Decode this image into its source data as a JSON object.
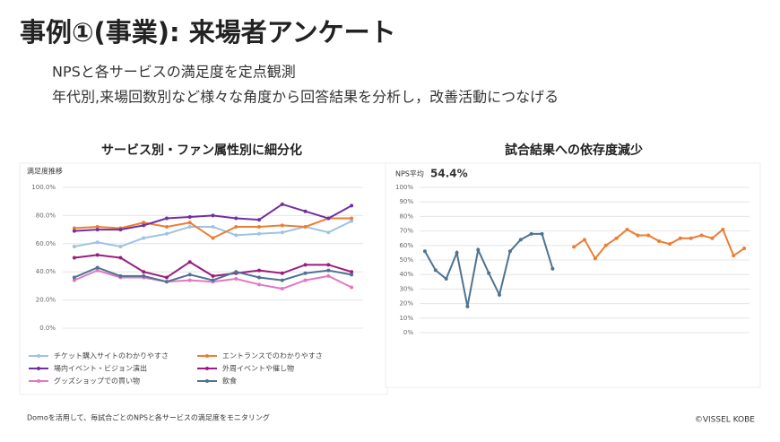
{
  "slide": {
    "title": "事例①(事業): 来場者アンケート",
    "lines": [
      "NPSと各サービスの満足度を定点観測",
      "年代別,来場回数別など様々な角度から回答結果を分析し，改善活動につなげる"
    ],
    "footer": "Domoを活用して、毎試合ごとのNPSと各サービスの満足度をモニタリング",
    "copyright": "©VISSEL  KOBE"
  },
  "chart_data": [
    {
      "type": "line",
      "heading": "サービス別・ファン属性別に細分化",
      "title": "満足度推移",
      "categories": [
        null,
        null,
        null,
        null,
        null,
        null,
        null,
        null,
        null,
        null,
        null,
        null,
        null
      ],
      "series": [
        {
          "name": "チケット購入サイトのわかりやすさ",
          "color": "#9dc3e6",
          "values": [
            58,
            61,
            58,
            64,
            67,
            72,
            72,
            66,
            67,
            68,
            72,
            68,
            76
          ]
        },
        {
          "name": "エントランスでのわかりやすさ",
          "color": "#ed7d31",
          "values": [
            71,
            72,
            71,
            75,
            72,
            75,
            64,
            72,
            72,
            73,
            72,
            78,
            78
          ]
        },
        {
          "name": "場内イベント・ビジョン演出",
          "color": "#7030a0",
          "values": [
            69,
            70,
            70,
            73,
            78,
            79,
            80,
            78,
            77,
            88,
            83,
            78,
            87
          ]
        },
        {
          "name": "外周イベントや催し物",
          "color": "#9b1c7e",
          "values": [
            50,
            52,
            50,
            40,
            36,
            47,
            37,
            39,
            41,
            39,
            45,
            45,
            40
          ]
        },
        {
          "name": "グッズショップでの買い物",
          "color": "#e377c2",
          "values": [
            34,
            41,
            36,
            36,
            33,
            34,
            33,
            35,
            31,
            28,
            34,
            37,
            29
          ]
        },
        {
          "name": "飲食",
          "color": "#4f7390",
          "values": [
            36,
            43,
            37,
            37,
            33,
            38,
            34,
            40,
            36,
            34,
            39,
            41,
            38
          ]
        }
      ],
      "ylim": [
        0,
        100
      ],
      "yticks": [
        {
          "value": 0,
          "label": "0.0%"
        },
        {
          "value": 20,
          "label": "20.0%"
        },
        {
          "value": 40,
          "label": "40.0%"
        },
        {
          "value": 60,
          "label": "60.0%"
        },
        {
          "value": 80,
          "label": "80.0%"
        },
        {
          "value": 100,
          "label": "100.0%"
        }
      ],
      "grid": true,
      "legend": "bottom"
    },
    {
      "type": "line",
      "heading": "試合結果への依存度減少",
      "title": "NPS平均",
      "annotation": "54.4%",
      "categories": [
        null,
        null,
        null,
        null,
        null,
        null,
        null,
        null,
        null,
        null,
        null,
        null,
        null,
        null,
        null,
        null,
        null,
        null,
        null,
        null,
        null,
        null,
        null,
        null,
        null,
        null,
        null,
        null,
        null,
        null,
        null
      ],
      "series": [
        {
          "color": "#4f7390",
          "values": [
            56,
            43,
            37,
            55,
            18,
            57,
            41,
            26,
            56,
            64,
            68,
            68,
            44,
            null,
            null,
            null,
            null,
            null,
            null,
            null,
            null,
            null,
            null,
            null,
            null,
            null,
            null,
            null,
            null,
            null,
            null
          ]
        },
        {
          "color": "#ed7d31",
          "values": [
            null,
            null,
            null,
            null,
            null,
            null,
            null,
            null,
            null,
            null,
            null,
            null,
            null,
            null,
            59,
            64,
            51,
            60,
            65,
            71,
            67,
            67,
            63,
            61,
            65,
            65,
            67,
            65,
            71,
            53,
            58
          ]
        }
      ],
      "ylim": [
        0,
        100
      ],
      "yticks": [
        {
          "value": 0,
          "label": "0%"
        },
        {
          "value": 10,
          "label": "10%"
        },
        {
          "value": 20,
          "label": "20%"
        },
        {
          "value": 30,
          "label": "30%"
        },
        {
          "value": 40,
          "label": "40%"
        },
        {
          "value": 50,
          "label": "50%"
        },
        {
          "value": 60,
          "label": "60%"
        },
        {
          "value": 70,
          "label": "70%"
        },
        {
          "value": 80,
          "label": "80%"
        },
        {
          "value": 90,
          "label": "90%"
        },
        {
          "value": 100,
          "label": "100%"
        }
      ],
      "grid": true
    }
  ]
}
